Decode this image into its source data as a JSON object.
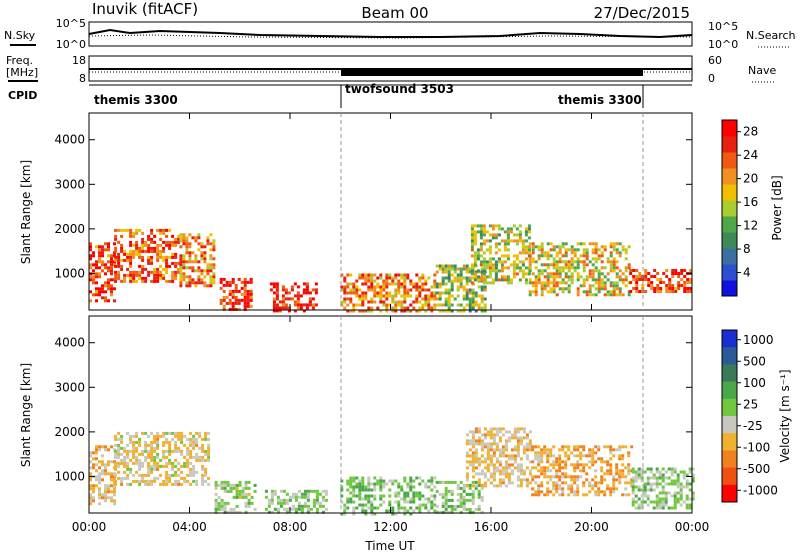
{
  "header": {
    "station": "Inuvik (fitACF)",
    "beam": "Beam 00",
    "date": "27/Dec/2015"
  },
  "top_panels": {
    "nsky_label": "N.Sky",
    "nsearch_label": "N.Search",
    "freq_label": "Freq.",
    "freq_unit": "[MHz]",
    "cpid_label": "CPID",
    "nave_label": "Nave",
    "noise_ticks_left": [
      "10^5",
      "10^0"
    ],
    "noise_ticks_right": [
      "10^5",
      "10^0"
    ],
    "freq_ticks_left": [
      "18",
      "8"
    ],
    "nave_ticks_right": [
      "60",
      "0"
    ]
  },
  "cpid_segments": [
    {
      "label": "themis 3300",
      "start_hour": 0,
      "end_hour": 10
    },
    {
      "label": "twofsound 3503",
      "start_hour": 10,
      "end_hour": 22
    },
    {
      "label": "themis 3300",
      "start_hour": 18,
      "end_hour": 22
    }
  ],
  "colors": {
    "power_scale": [
      "#1010e0",
      "#2a4fd0",
      "#3a6fa0",
      "#3c8a5a",
      "#4ea84a",
      "#aacc30",
      "#f0c000",
      "#f09020",
      "#f05a10",
      "#e82010",
      "#ff0000"
    ],
    "velocity_scale": [
      "#1a2fd0",
      "#2a5a9a",
      "#3a7a5a",
      "#4aa84a",
      "#70c840",
      "#c8c8c0",
      "#f0b030",
      "#f08020",
      "#f05010",
      "#ff0000"
    ],
    "frame": "#000000"
  },
  "chart_data": [
    {
      "type": "heatmap",
      "title": "Power",
      "ylabel": "Slant Range [km]",
      "xlabel": "Time UT",
      "x_ticks": [
        "00:00",
        "04:00",
        "08:00",
        "12:00",
        "16:00",
        "20:00",
        "00:00"
      ],
      "y_ticks": [
        "1000",
        "2000",
        "3000",
        "4000"
      ],
      "xlim_hours": [
        0,
        24
      ],
      "ylim_km": [
        180,
        4600
      ],
      "colorbar": {
        "label": "Power [dB]",
        "ticks": [
          "4",
          "8",
          "12",
          "16",
          "20",
          "24",
          "28"
        ],
        "range": [
          0,
          30
        ]
      },
      "echo_regions": [
        {
          "t0": 0.0,
          "t1": 1.0,
          "r0": 400,
          "r1": 1700,
          "value": 26
        },
        {
          "t0": 1.0,
          "t1": 3.6,
          "r0": 800,
          "r1": 2000,
          "value": 24
        },
        {
          "t0": 3.6,
          "t1": 5.0,
          "r0": 700,
          "r1": 1900,
          "value": 22
        },
        {
          "t0": 5.2,
          "t1": 6.5,
          "r0": 180,
          "r1": 900,
          "value": 28
        },
        {
          "t0": 7.2,
          "t1": 9.0,
          "r0": 180,
          "r1": 800,
          "value": 28
        },
        {
          "t0": 10.0,
          "t1": 13.8,
          "r0": 180,
          "r1": 1000,
          "value": 22
        },
        {
          "t0": 13.8,
          "t1": 15.8,
          "r0": 180,
          "r1": 1200,
          "value": 14
        },
        {
          "t0": 15.2,
          "t1": 17.5,
          "r0": 800,
          "r1": 2100,
          "value": 16
        },
        {
          "t0": 17.5,
          "t1": 21.5,
          "r0": 500,
          "r1": 1700,
          "value": 18
        },
        {
          "t0": 21.5,
          "t1": 24.0,
          "r0": 600,
          "r1": 1100,
          "value": 26
        }
      ]
    },
    {
      "type": "heatmap",
      "title": "Velocity",
      "ylabel": "Slant Range [km]",
      "xlabel": "Time UT",
      "x_ticks": [
        "00:00",
        "04:00",
        "08:00",
        "12:00",
        "16:00",
        "20:00",
        "00:00"
      ],
      "y_ticks": [
        "1000",
        "2000",
        "3000",
        "4000"
      ],
      "xlim_hours": [
        0,
        24
      ],
      "ylim_km": [
        180,
        4600
      ],
      "colorbar": {
        "label": "Velocity [m s⁻¹]",
        "ticks": [
          "1000",
          "500",
          "100",
          "25",
          "-25",
          "-100",
          "-500",
          "-1000"
        ]
      },
      "echo_regions": [
        {
          "t0": 0.0,
          "t1": 1.0,
          "r0": 400,
          "r1": 1700,
          "value": -300
        },
        {
          "t0": 1.0,
          "t1": 4.8,
          "r0": 800,
          "r1": 2000,
          "value": -200
        },
        {
          "t0": 5.0,
          "t1": 6.6,
          "r0": 180,
          "r1": 900,
          "value": 0
        },
        {
          "t0": 7.0,
          "t1": 9.4,
          "r0": 180,
          "r1": 700,
          "value": 80
        },
        {
          "t0": 10.0,
          "t1": 13.8,
          "r0": 180,
          "r1": 1000,
          "value": 150
        },
        {
          "t0": 13.8,
          "t1": 15.6,
          "r0": 180,
          "r1": 900,
          "value": 60
        },
        {
          "t0": 15.0,
          "t1": 17.6,
          "r0": 800,
          "r1": 2100,
          "value": -250
        },
        {
          "t0": 17.6,
          "t1": 21.6,
          "r0": 600,
          "r1": 1700,
          "value": -400
        },
        {
          "t0": 21.6,
          "t1": 24.0,
          "r0": 300,
          "r1": 1200,
          "value": 40
        }
      ]
    }
  ]
}
